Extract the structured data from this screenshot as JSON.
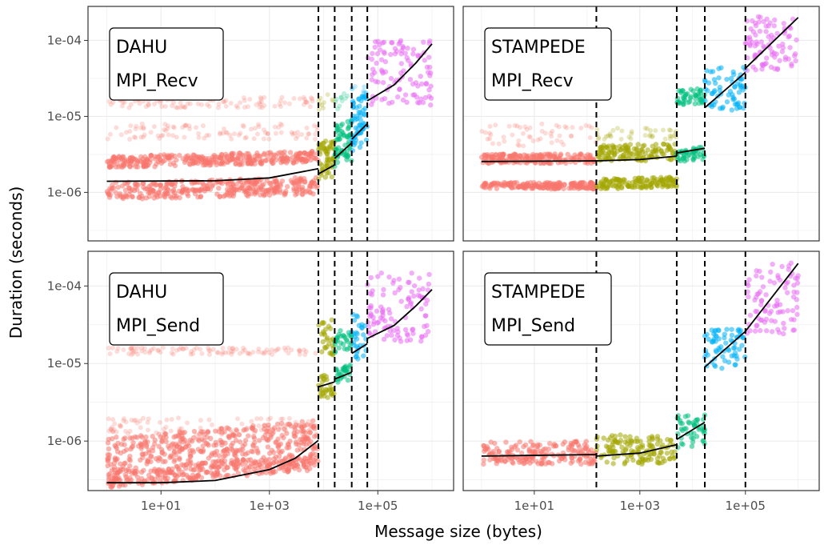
{
  "chart_data": {
    "type": "scatter",
    "xlabel": "Message size (bytes)",
    "ylabel": "Duration (seconds)",
    "x_scale": "log10",
    "y_scale": "log10",
    "x_ticks": [
      10,
      1000,
      100000
    ],
    "x_tick_labels": [
      "1e+01",
      "1e+03",
      "1e+05"
    ],
    "y_ticks": [
      1e-06,
      1e-05,
      0.0001
    ],
    "y_tick_labels": [
      "1e-06",
      "1e-05",
      "1e-04"
    ],
    "xlim": [
      0.45,
      2500000
    ],
    "ylim": [
      2.3e-07,
      0.00028
    ],
    "grid": true,
    "legend": "none",
    "colors": {
      "seg1": "#F8766D",
      "seg2": "#A3A500",
      "seg3": "#00BF7D",
      "seg4": "#00B0F6",
      "seg5": "#E76BF3",
      "fit": "#000000",
      "breakpoint": "#000000"
    },
    "panels": [
      {
        "id": "dahu-recv",
        "label_line1": "DAHU",
        "label_line2": "MPI_Recv",
        "breakpoints": [
          8000,
          16000,
          33000,
          64000
        ],
        "segments": [
          {
            "color": "seg1",
            "x_range": [
              1,
              8000
            ],
            "fit": [
              [
                1,
                1.4e-06
              ],
              [
                100,
                1.42e-06
              ],
              [
                1000,
                1.55e-06
              ],
              [
                8000,
                2.05e-06
              ]
            ],
            "bands": [
              [
                8e-07,
                1.35e-06
              ],
              [
                2.1e-06,
                3e-06
              ]
            ],
            "sparse": [
              [
                5e-06,
                8e-06
              ],
              [
                1.3e-05,
                1.8e-05
              ]
            ]
          },
          {
            "color": "seg2",
            "x_range": [
              8000,
              16000
            ],
            "fit": [
              [
                8000,
                1.75e-06
              ],
              [
                16000,
                2.3e-06
              ]
            ],
            "bands": [
              [
                1.4e-06,
                2.8e-06
              ],
              [
                3e-06,
                4.5e-06
              ]
            ],
            "sparse": [
              [
                1.1e-05,
                2e-05
              ]
            ]
          },
          {
            "color": "seg3",
            "x_range": [
              16000,
              33000
            ],
            "fit": [
              [
                16000,
                2.8e-06
              ],
              [
                33000,
                4.5e-06
              ]
            ],
            "bands": [
              [
                2e-06,
                4e-06
              ],
              [
                4.5e-06,
                8e-06
              ]
            ],
            "sparse": [
              [
                1.2e-05,
                2e-05
              ]
            ]
          },
          {
            "color": "seg4",
            "x_range": [
              33000,
              64000
            ],
            "fit": [
              [
                33000,
                5e-06
              ],
              [
                64000,
                8e-06
              ]
            ],
            "bands": [
              [
                3.5e-06,
                7e-06
              ],
              [
                8e-06,
                1.6e-05
              ]
            ],
            "sparse": [
              [
                1.8e-05,
                2.5e-05
              ]
            ]
          },
          {
            "color": "seg5",
            "x_range": [
              64000,
              1000000
            ],
            "fit": [
              [
                64000,
                1.6e-05
              ],
              [
                200000,
                2.6e-05
              ],
              [
                500000,
                5e-05
              ],
              [
                1000000,
                9e-05
              ]
            ],
            "bands": [
              [
                1.4e-05,
                0.0001
              ]
            ],
            "sparse": []
          }
        ]
      },
      {
        "id": "stampede-recv",
        "label_line1": "STAMPEDE",
        "label_line2": "MPI_Recv",
        "breakpoints": [
          150,
          5000,
          17000,
          100000
        ],
        "segments": [
          {
            "color": "seg1",
            "x_range": [
              1,
              150
            ],
            "fit": [
              [
                1,
                2.55e-06
              ],
              [
                150,
                2.6e-06
              ]
            ],
            "bands": [
              [
                1.1e-06,
                1.35e-06
              ],
              [
                2.4e-06,
                3.2e-06
              ]
            ],
            "sparse": [
              [
                4e-06,
                8e-06
              ]
            ]
          },
          {
            "color": "seg2",
            "x_range": [
              150,
              5000
            ],
            "fit": [
              [
                150,
                2.6e-06
              ],
              [
                1000,
                2.7e-06
              ],
              [
                5000,
                3e-06
              ]
            ],
            "bands": [
              [
                1.1e-06,
                1.5e-06
              ],
              [
                2.5e-06,
                4.2e-06
              ]
            ],
            "sparse": [
              [
                5e-06,
                7e-06
              ]
            ]
          },
          {
            "color": "seg3",
            "x_range": [
              5000,
              17000
            ],
            "fit": [
              [
                5000,
                3.3e-06
              ],
              [
                17000,
                3.8e-06
              ]
            ],
            "bands": [
              [
                2.5e-06,
                3.8e-06
              ],
              [
                1.4e-05,
                2.2e-05
              ]
            ],
            "sparse": []
          },
          {
            "color": "seg4",
            "x_range": [
              17000,
              100000
            ],
            "fit": [
              [
                17000,
                1.3e-05
              ],
              [
                100000,
                3.8e-05
              ]
            ],
            "bands": [
              [
                1.2e-05,
                4.5e-05
              ]
            ],
            "sparse": []
          },
          {
            "color": "seg5",
            "x_range": [
              100000,
              1000000
            ],
            "fit": [
              [
                100000,
                4.3e-05
              ],
              [
                1000000,
                0.0002
              ]
            ],
            "bands": [
              [
                4e-05,
                0.00021
              ]
            ],
            "sparse": []
          }
        ]
      },
      {
        "id": "dahu-send",
        "label_line1": "DAHU",
        "label_line2": "MPI_Send",
        "breakpoints": [
          8000,
          16000,
          33000,
          64000
        ],
        "segments": [
          {
            "color": "seg1",
            "x_range": [
              1,
              8000
            ],
            "fit": [
              [
                1,
                2.9e-07
              ],
              [
                10,
                2.9e-07
              ],
              [
                100,
                3.1e-07
              ],
              [
                1000,
                4.3e-07
              ],
              [
                3000,
                6e-07
              ],
              [
                8000,
                1.02e-06
              ]
            ],
            "bands": [
              [
                2.5e-07,
                4.2e-07
              ],
              [
                4.5e-07,
                1.1e-06
              ]
            ],
            "sparse": [
              [
                1.2e-06,
                2e-06
              ],
              [
                1.3e-05,
                1.6e-05
              ]
            ]
          },
          {
            "color": "seg2",
            "x_range": [
              8000,
              16000
            ],
            "fit": [
              [
                8000,
                5e-06
              ],
              [
                16000,
                5.8e-06
              ]
            ],
            "bands": [
              [
                3.5e-06,
                7e-06
              ],
              [
                1.2e-05,
                3.5e-05
              ]
            ],
            "sparse": []
          },
          {
            "color": "seg3",
            "x_range": [
              16000,
              33000
            ],
            "fit": [
              [
                16000,
                6.3e-06
              ],
              [
                33000,
                7.7e-06
              ]
            ],
            "bands": [
              [
                5.5e-06,
                9e-06
              ],
              [
                1.3e-05,
                2.6e-05
              ]
            ],
            "sparse": []
          },
          {
            "color": "seg4",
            "x_range": [
              33000,
              64000
            ],
            "fit": [
              [
                33000,
                1.35e-05
              ],
              [
                64000,
                1.8e-05
              ]
            ],
            "bands": [
              [
                1.1e-05,
                4.5e-05
              ]
            ],
            "sparse": []
          },
          {
            "color": "seg5",
            "x_range": [
              64000,
              1000000
            ],
            "fit": [
              [
                64000,
                2.1e-05
              ],
              [
                200000,
                3.1e-05
              ],
              [
                500000,
                5.5e-05
              ],
              [
                1000000,
                9e-05
              ]
            ],
            "bands": [
              [
                1.9e-05,
                0.00015
              ]
            ],
            "sparse": []
          }
        ]
      },
      {
        "id": "stampede-send",
        "label_line1": "STAMPEDE",
        "label_line2": "MPI_Send",
        "breakpoints": [
          150,
          5000,
          17000,
          100000
        ],
        "segments": [
          {
            "color": "seg1",
            "x_range": [
              1,
              150
            ],
            "fit": [
              [
                1,
                6.4e-07
              ],
              [
                150,
                6.7e-07
              ]
            ],
            "bands": [
              [
                5e-07,
                1e-06
              ]
            ],
            "sparse": []
          },
          {
            "color": "seg2",
            "x_range": [
              150,
              5000
            ],
            "fit": [
              [
                150,
                6.4e-07
              ],
              [
                1000,
                7e-07
              ],
              [
                5000,
                9e-07
              ]
            ],
            "bands": [
              [
                5e-07,
                1.2e-06
              ]
            ],
            "sparse": []
          },
          {
            "color": "seg3",
            "x_range": [
              5000,
              17000
            ],
            "fit": [
              [
                5000,
                1.05e-06
              ],
              [
                17000,
                1.75e-06
              ]
            ],
            "bands": [
              [
                8e-07,
                2.2e-06
              ]
            ],
            "sparse": []
          },
          {
            "color": "seg4",
            "x_range": [
              17000,
              100000
            ],
            "fit": [
              [
                17000,
                9e-06
              ],
              [
                100000,
                2.6e-05
              ]
            ],
            "bands": [
              [
                8.5e-06,
                2.8e-05
              ]
            ],
            "sparse": []
          },
          {
            "color": "seg5",
            "x_range": [
              100000,
              1000000
            ],
            "fit": [
              [
                100000,
                2.6e-05
              ],
              [
                1000000,
                0.000195
              ]
            ],
            "bands": [
              [
                2.4e-05,
                0.0002
              ]
            ],
            "sparse": []
          }
        ]
      }
    ]
  }
}
